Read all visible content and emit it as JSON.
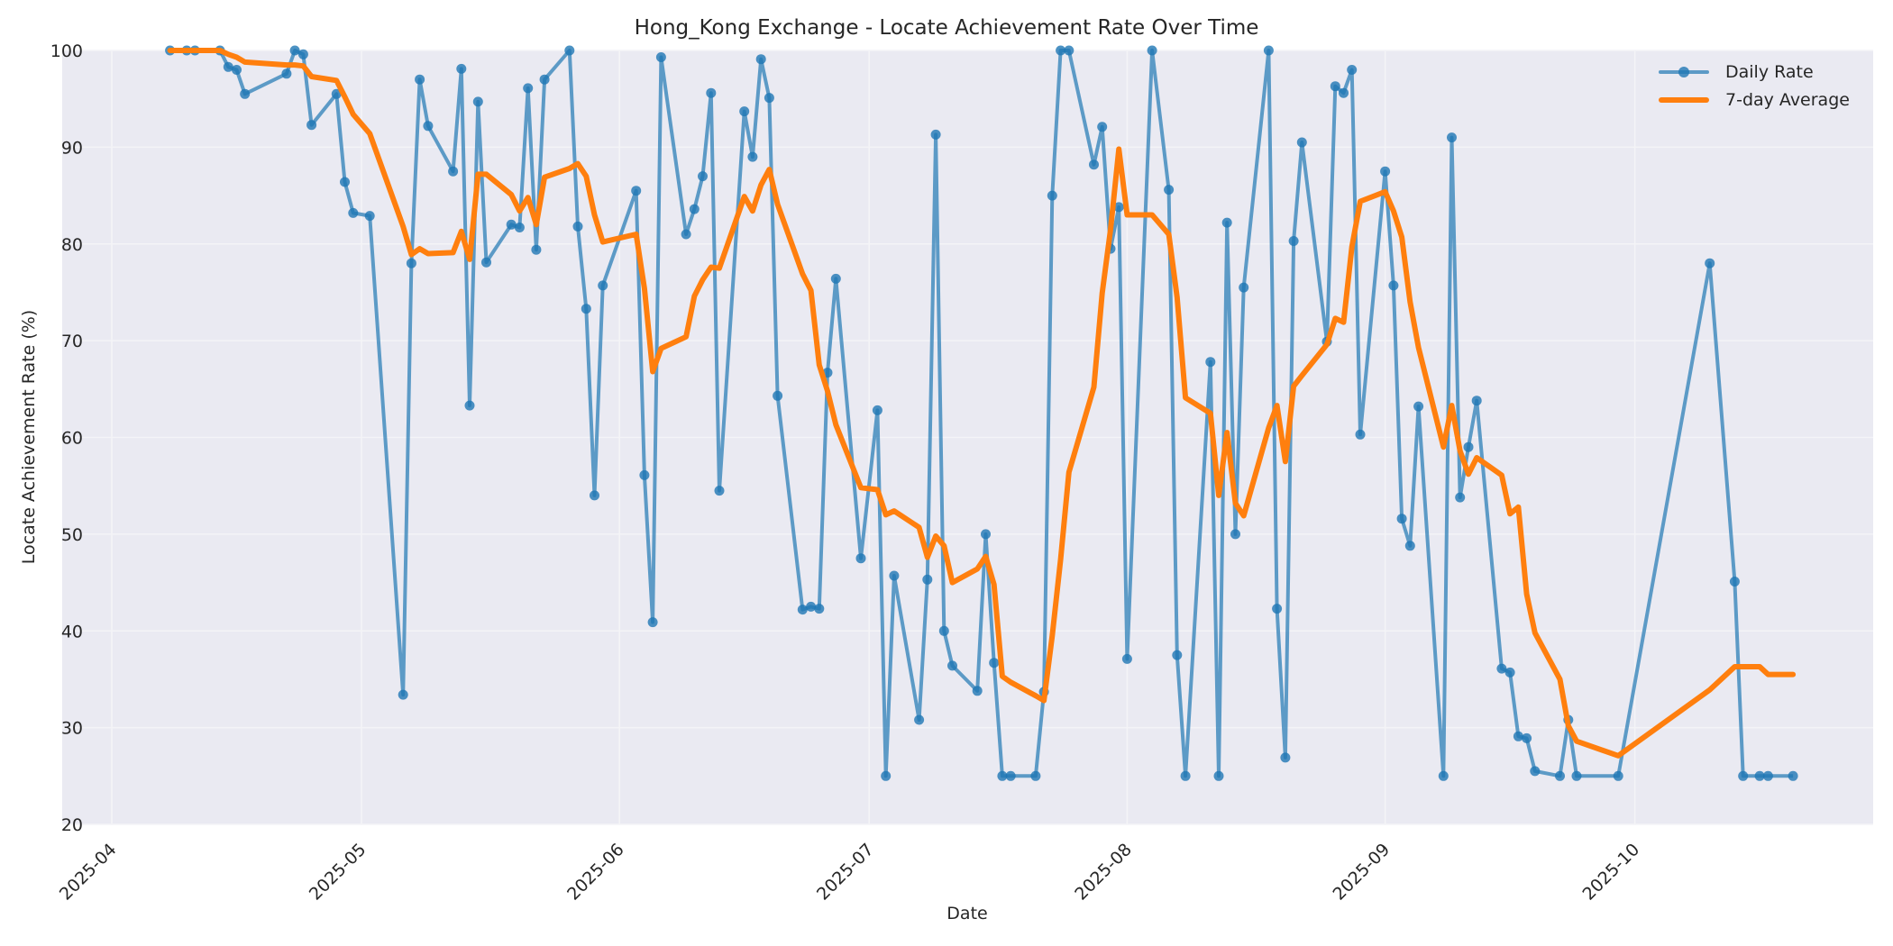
{
  "chart_data": {
    "type": "line",
    "title": "Hong_Kong Exchange - Locate Achievement Rate Over Time",
    "xlabel": "Date",
    "ylabel": "Locate Achievement Rate (%)",
    "ylim": [
      20,
      100
    ],
    "xlim": [
      "2025-03-24",
      "2025-10-30"
    ],
    "grid": true,
    "legend_position": "upper right",
    "y_ticks": [
      20,
      30,
      40,
      50,
      60,
      70,
      80,
      90,
      100
    ],
    "x_ticks": [
      "2025-04",
      "2025-05",
      "2025-06",
      "2025-07",
      "2025-08",
      "2025-09",
      "2025-10"
    ],
    "colors": {
      "daily": "#1f77b4",
      "avg": "#ff7f0e",
      "plot_bg": "#eaeaf2",
      "grid": "#f5f5f8"
    },
    "series": [
      {
        "name": "Daily Rate",
        "marker": "circle",
        "points": [
          [
            "2025-04-08",
            100
          ],
          [
            "2025-04-10",
            100
          ],
          [
            "2025-04-11",
            100
          ],
          [
            "2025-04-14",
            100
          ],
          [
            "2025-04-15",
            98.3
          ],
          [
            "2025-04-16",
            98
          ],
          [
            "2025-04-17",
            95.5
          ],
          [
            "2025-04-22",
            97.6
          ],
          [
            "2025-04-23",
            100
          ],
          [
            "2025-04-24",
            99.6
          ],
          [
            "2025-04-25",
            92.3
          ],
          [
            "2025-04-28",
            95.5
          ],
          [
            "2025-04-29",
            86.4
          ],
          [
            "2025-04-30",
            83.2
          ],
          [
            "2025-05-02",
            82.9
          ],
          [
            "2025-05-06",
            33.4
          ],
          [
            "2025-05-07",
            78
          ],
          [
            "2025-05-08",
            97
          ],
          [
            "2025-05-09",
            92.2
          ],
          [
            "2025-05-12",
            87.5
          ],
          [
            "2025-05-13",
            98.1
          ],
          [
            "2025-05-14",
            63.3
          ],
          [
            "2025-05-15",
            94.7
          ],
          [
            "2025-05-16",
            78.1
          ],
          [
            "2025-05-19",
            82
          ],
          [
            "2025-05-20",
            81.7
          ],
          [
            "2025-05-21",
            96.1
          ],
          [
            "2025-05-22",
            79.4
          ],
          [
            "2025-05-23",
            97
          ],
          [
            "2025-05-26",
            100
          ],
          [
            "2025-05-27",
            81.8
          ],
          [
            "2025-05-28",
            73.3
          ],
          [
            "2025-05-29",
            54
          ],
          [
            "2025-05-30",
            75.7
          ],
          [
            "2025-06-03",
            85.5
          ],
          [
            "2025-06-04",
            56.1
          ],
          [
            "2025-06-05",
            40.9
          ],
          [
            "2025-06-06",
            99.3
          ],
          [
            "2025-06-09",
            81
          ],
          [
            "2025-06-10",
            83.6
          ],
          [
            "2025-06-11",
            87
          ],
          [
            "2025-06-12",
            95.6
          ],
          [
            "2025-06-13",
            54.5
          ],
          [
            "2025-06-16",
            93.7
          ],
          [
            "2025-06-17",
            89
          ],
          [
            "2025-06-18",
            99.1
          ],
          [
            "2025-06-19",
            95.1
          ],
          [
            "2025-06-20",
            64.3
          ],
          [
            "2025-06-23",
            42.2
          ],
          [
            "2025-06-24",
            42.5
          ],
          [
            "2025-06-25",
            42.3
          ],
          [
            "2025-06-26",
            66.7
          ],
          [
            "2025-06-27",
            76.4
          ],
          [
            "2025-06-30",
            47.5
          ],
          [
            "2025-07-02",
            62.8
          ],
          [
            "2025-07-03",
            25
          ],
          [
            "2025-07-04",
            45.7
          ],
          [
            "2025-07-07",
            30.8
          ],
          [
            "2025-07-08",
            45.3
          ],
          [
            "2025-07-09",
            91.3
          ],
          [
            "2025-07-10",
            40
          ],
          [
            "2025-07-11",
            36.4
          ],
          [
            "2025-07-14",
            33.8
          ],
          [
            "2025-07-15",
            50
          ],
          [
            "2025-07-16",
            36.7
          ],
          [
            "2025-07-17",
            25
          ],
          [
            "2025-07-18",
            25
          ],
          [
            "2025-07-21",
            25
          ],
          [
            "2025-07-22",
            33.7
          ],
          [
            "2025-07-23",
            85
          ],
          [
            "2025-07-24",
            100
          ],
          [
            "2025-07-25",
            100
          ],
          [
            "2025-07-28",
            88.2
          ],
          [
            "2025-07-29",
            92.1
          ],
          [
            "2025-07-30",
            79.5
          ],
          [
            "2025-07-31",
            83.8
          ],
          [
            "2025-08-01",
            37.1
          ],
          [
            "2025-08-04",
            100
          ],
          [
            "2025-08-06",
            85.6
          ],
          [
            "2025-08-07",
            37.5
          ],
          [
            "2025-08-08",
            25
          ],
          [
            "2025-08-11",
            67.8
          ],
          [
            "2025-08-12",
            25
          ],
          [
            "2025-08-13",
            82.2
          ],
          [
            "2025-08-14",
            50
          ],
          [
            "2025-08-15",
            75.5
          ],
          [
            "2025-08-18",
            100
          ],
          [
            "2025-08-19",
            42.3
          ],
          [
            "2025-08-20",
            26.9
          ],
          [
            "2025-08-21",
            80.3
          ],
          [
            "2025-08-22",
            90.5
          ],
          [
            "2025-08-25",
            69.9
          ],
          [
            "2025-08-26",
            96.3
          ],
          [
            "2025-08-27",
            95.6
          ],
          [
            "2025-08-28",
            98
          ],
          [
            "2025-08-29",
            60.3
          ],
          [
            "2025-09-01",
            87.5
          ],
          [
            "2025-09-02",
            75.7
          ],
          [
            "2025-09-03",
            51.6
          ],
          [
            "2025-09-04",
            48.8
          ],
          [
            "2025-09-05",
            63.2
          ],
          [
            "2025-09-08",
            25
          ],
          [
            "2025-09-09",
            91
          ],
          [
            "2025-09-10",
            53.8
          ],
          [
            "2025-09-11",
            59
          ],
          [
            "2025-09-12",
            63.8
          ],
          [
            "2025-09-15",
            36.1
          ],
          [
            "2025-09-16",
            35.7
          ],
          [
            "2025-09-17",
            29.1
          ],
          [
            "2025-09-18",
            28.9
          ],
          [
            "2025-09-19",
            25.5
          ],
          [
            "2025-09-22",
            25
          ],
          [
            "2025-09-23",
            30.8
          ],
          [
            "2025-09-24",
            25
          ],
          [
            "2025-09-29",
            25
          ],
          [
            "2025-10-10",
            78
          ],
          [
            "2025-10-13",
            45.1
          ],
          [
            "2025-10-14",
            25
          ],
          [
            "2025-10-16",
            25
          ],
          [
            "2025-10-17",
            25
          ],
          [
            "2025-10-20",
            25
          ]
        ]
      },
      {
        "name": "7-day Average",
        "marker": "none",
        "points": [
          [
            "2025-04-08",
            100
          ],
          [
            "2025-04-10",
            100
          ],
          [
            "2025-04-11",
            100
          ],
          [
            "2025-04-14",
            100
          ],
          [
            "2025-04-15",
            99.6
          ],
          [
            "2025-04-16",
            99.3
          ],
          [
            "2025-04-17",
            98.8
          ],
          [
            "2025-04-22",
            98.5
          ],
          [
            "2025-04-23",
            98.5
          ],
          [
            "2025-04-24",
            98.4
          ],
          [
            "2025-04-25",
            97.3
          ],
          [
            "2025-04-28",
            96.9
          ],
          [
            "2025-04-29",
            95.2
          ],
          [
            "2025-04-30",
            93.4
          ],
          [
            "2025-05-02",
            91.4
          ],
          [
            "2025-05-06",
            81.8
          ],
          [
            "2025-05-07",
            78.9
          ],
          [
            "2025-05-08",
            79.5
          ],
          [
            "2025-05-09",
            79
          ],
          [
            "2025-05-12",
            79.1
          ],
          [
            "2025-05-13",
            81.3
          ],
          [
            "2025-05-14",
            78.4
          ],
          [
            "2025-05-15",
            87.2
          ],
          [
            "2025-05-16",
            87.2
          ],
          [
            "2025-05-19",
            85.1
          ],
          [
            "2025-05-20",
            83.4
          ],
          [
            "2025-05-21",
            84.8
          ],
          [
            "2025-05-22",
            82
          ],
          [
            "2025-05-23",
            86.9
          ],
          [
            "2025-05-26",
            87.8
          ],
          [
            "2025-05-27",
            88.3
          ],
          [
            "2025-05-28",
            87
          ],
          [
            "2025-05-29",
            83
          ],
          [
            "2025-05-30",
            80.2
          ],
          [
            "2025-06-03",
            81
          ],
          [
            "2025-06-04",
            75.4
          ],
          [
            "2025-06-05",
            66.8
          ],
          [
            "2025-06-06",
            69.2
          ],
          [
            "2025-06-09",
            70.4
          ],
          [
            "2025-06-10",
            74.6
          ],
          [
            "2025-06-11",
            76.3
          ],
          [
            "2025-06-12",
            77.6
          ],
          [
            "2025-06-13",
            77.5
          ],
          [
            "2025-06-16",
            84.9
          ],
          [
            "2025-06-17",
            83.4
          ],
          [
            "2025-06-18",
            86.1
          ],
          [
            "2025-06-19",
            87.7
          ],
          [
            "2025-06-20",
            84.1
          ],
          [
            "2025-06-23",
            76.9
          ],
          [
            "2025-06-24",
            75.2
          ],
          [
            "2025-06-25",
            67.5
          ],
          [
            "2025-06-26",
            64.8
          ],
          [
            "2025-06-27",
            61.3
          ],
          [
            "2025-06-30",
            54.8
          ],
          [
            "2025-07-02",
            54.6
          ],
          [
            "2025-07-03",
            52
          ],
          [
            "2025-07-04",
            52.4
          ],
          [
            "2025-07-07",
            50.7
          ],
          [
            "2025-07-08",
            47.6
          ],
          [
            "2025-07-09",
            49.8
          ],
          [
            "2025-07-10",
            48.8
          ],
          [
            "2025-07-11",
            45
          ],
          [
            "2025-07-14",
            46.4
          ],
          [
            "2025-07-15",
            47.7
          ],
          [
            "2025-07-16",
            44.8
          ],
          [
            "2025-07-17",
            35.3
          ],
          [
            "2025-07-18",
            34.7
          ],
          [
            "2025-07-21",
            33.3
          ],
          [
            "2025-07-22",
            32.8
          ],
          [
            "2025-07-23",
            39.5
          ],
          [
            "2025-07-24",
            47.4
          ],
          [
            "2025-07-25",
            56.4
          ],
          [
            "2025-07-28",
            65.2
          ],
          [
            "2025-07-29",
            74.9
          ],
          [
            "2025-07-30",
            81.5
          ],
          [
            "2025-07-31",
            89.8
          ],
          [
            "2025-08-01",
            83
          ],
          [
            "2025-08-04",
            83
          ],
          [
            "2025-08-06",
            81
          ],
          [
            "2025-08-07",
            74.5
          ],
          [
            "2025-08-08",
            64.1
          ],
          [
            "2025-08-11",
            62.5
          ],
          [
            "2025-08-12",
            54
          ],
          [
            "2025-08-13",
            60.5
          ],
          [
            "2025-08-14",
            53.2
          ],
          [
            "2025-08-15",
            51.9
          ],
          [
            "2025-08-18",
            61
          ],
          [
            "2025-08-19",
            63.3
          ],
          [
            "2025-08-20",
            57.5
          ],
          [
            "2025-08-21",
            65.3
          ],
          [
            "2025-08-22",
            66.4
          ],
          [
            "2025-08-25",
            69.6
          ],
          [
            "2025-08-26",
            72.3
          ],
          [
            "2025-08-27",
            71.9
          ],
          [
            "2025-08-28",
            79.7
          ],
          [
            "2025-08-29",
            84.4
          ],
          [
            "2025-09-01",
            85.4
          ],
          [
            "2025-09-02",
            83.4
          ],
          [
            "2025-09-03",
            80.7
          ],
          [
            "2025-09-04",
            74
          ],
          [
            "2025-09-05",
            69.3
          ],
          [
            "2025-09-08",
            59
          ],
          [
            "2025-09-09",
            63.3
          ],
          [
            "2025-09-10",
            58.6
          ],
          [
            "2025-09-11",
            56.2
          ],
          [
            "2025-09-12",
            57.9
          ],
          [
            "2025-09-15",
            56.1
          ],
          [
            "2025-09-16",
            52.1
          ],
          [
            "2025-09-17",
            52.8
          ],
          [
            "2025-09-18",
            43.8
          ],
          [
            "2025-09-19",
            39.8
          ],
          [
            "2025-09-22",
            35
          ],
          [
            "2025-09-23",
            30.2
          ],
          [
            "2025-09-24",
            28.6
          ],
          [
            "2025-09-29",
            27.1
          ],
          [
            "2025-10-10",
            33.9
          ],
          [
            "2025-10-13",
            36.3
          ],
          [
            "2025-10-14",
            36.3
          ],
          [
            "2025-10-16",
            36.3
          ],
          [
            "2025-10-17",
            35.5
          ],
          [
            "2025-10-20",
            35.5
          ]
        ]
      }
    ]
  },
  "legend": {
    "items": [
      {
        "label": "Daily Rate"
      },
      {
        "label": "7-day Average"
      }
    ]
  }
}
